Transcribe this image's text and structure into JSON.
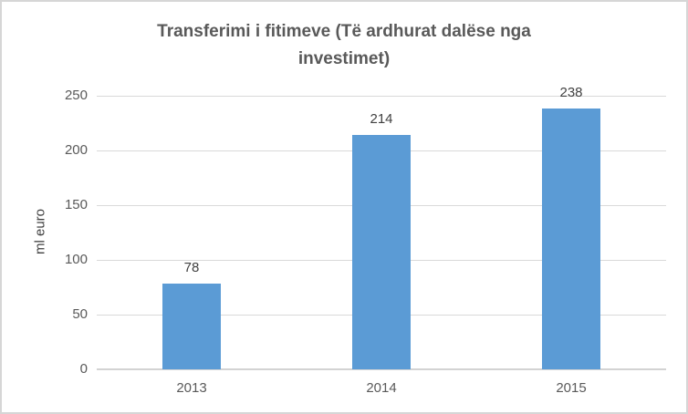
{
  "chart_data": {
    "type": "bar",
    "title": "Transferimi i fitimeve (Të ardhurat dalëse nga investimet)",
    "title_lines": [
      "Transferimi i fitimeve (Të ardhurat dalëse nga",
      "investimet)"
    ],
    "categories": [
      "2013",
      "2014",
      "2015"
    ],
    "values": [
      78,
      214,
      238
    ],
    "data_labels": [
      "78",
      "214",
      "238"
    ],
    "xlabel": "",
    "ylabel": "ml euro",
    "ylim": [
      0,
      250
    ],
    "ytick_interval": 50,
    "yticks": [
      0,
      50,
      100,
      150,
      200,
      250
    ],
    "grid": true,
    "legend": false,
    "colors": {
      "bar": "#5b9bd5",
      "gridline": "#d9d9d9",
      "axis_line": "#d3d3d3",
      "title_text": "#595959",
      "tick_text": "#595959",
      "data_label_text": "#404040",
      "axis_title_text": "#404040",
      "background": "#ffffff",
      "border": "#d6d6d6"
    }
  }
}
